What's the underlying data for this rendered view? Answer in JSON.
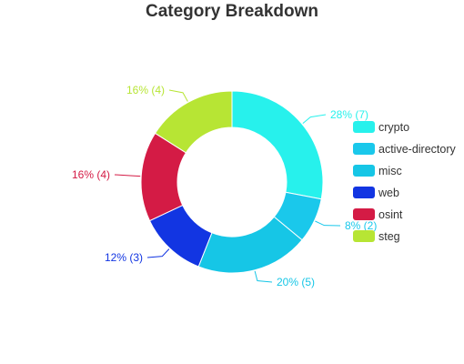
{
  "chart_data": {
    "type": "pie",
    "variant": "donut",
    "title": "Category Breakdown",
    "legend_position": "right",
    "slices": [
      {
        "name": "crypto",
        "value": 7,
        "percent_label": "28% (7)",
        "color": "#27F1EC"
      },
      {
        "name": "active-directory",
        "value": 2,
        "percent_label": "8% (2)",
        "color": "#1AC8EB"
      },
      {
        "name": "misc",
        "value": 5,
        "percent_label": "20% (5)",
        "color": "#16C6E6"
      },
      {
        "name": "web",
        "value": 3,
        "percent_label": "12% (3)",
        "color": "#1235E2"
      },
      {
        "name": "osint",
        "value": 4,
        "percent_label": "16% (4)",
        "color": "#D41B45"
      },
      {
        "name": "steg",
        "value": 4,
        "percent_label": "16% (4)",
        "color": "#B7E534"
      }
    ]
  }
}
